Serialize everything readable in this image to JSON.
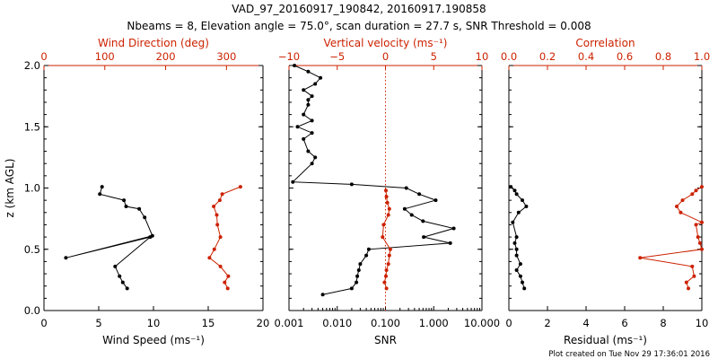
{
  "title_line1": "VAD_97_20160917_190842, 20160917.190858",
  "title_line2": "Nbeams = 8, Elevation angle = 75.0°, scan duration = 27.7 s, SNR Threshold = 0.008",
  "footer": "Plot created on Tue Nov 29 17:36:01 2016",
  "colors": {
    "primary": "#000000",
    "secondary": "#cc2200"
  },
  "chart_data": [
    {
      "type": "line",
      "ylabel": "z (km AGL)",
      "ylim": [
        0,
        2
      ],
      "ytick_labels": [
        "0.0",
        "0.5",
        "1.0",
        "1.5",
        "2.0"
      ],
      "bottom_axis": {
        "label": "Wind Speed (ms⁻¹)",
        "range": [
          0,
          20
        ],
        "tick_labels": [
          "0",
          "5",
          "10",
          "15",
          "20"
        ]
      },
      "top_axis": {
        "label": "Wind Direction (deg)",
        "range": [
          0,
          360
        ],
        "tick_labels": [
          "0",
          "100",
          "200",
          "300"
        ]
      },
      "series": [
        {
          "axis": "bottom",
          "color": "#000000",
          "x": [
            7.6,
            7.2,
            6.9,
            6.5,
            9.7,
            2.0,
            9.9,
            9.2,
            8.7,
            7.5,
            7.3,
            5.1,
            5.3
          ],
          "y": [
            0.18,
            0.23,
            0.28,
            0.36,
            0.6,
            0.43,
            0.61,
            0.76,
            0.83,
            0.85,
            0.9,
            0.95,
            1.01
          ]
        },
        {
          "axis": "top",
          "color": "#cc2200",
          "x": [
            302,
            297,
            303,
            290,
            272,
            280,
            290,
            285,
            284,
            279,
            289,
            293,
            323
          ],
          "y": [
            0.18,
            0.23,
            0.28,
            0.36,
            0.43,
            0.5,
            0.6,
            0.7,
            0.78,
            0.85,
            0.9,
            0.95,
            1.01
          ]
        }
      ]
    },
    {
      "type": "line",
      "bottom_axis": {
        "label": "SNR",
        "scale": "log",
        "range": [
          0.001,
          10
        ],
        "tick_labels": [
          "0.001",
          "0.010",
          "0.100",
          "1.000",
          "10.000"
        ]
      },
      "top_axis": {
        "label": "Vertical velocity (ms⁻¹)",
        "range": [
          -10,
          10
        ],
        "tick_labels": [
          "−10",
          "−5",
          "0",
          "5",
          "10"
        ]
      },
      "series": [
        {
          "axis": "bottom",
          "color": "#000000",
          "x": [
            0.005,
            0.02,
            0.025,
            0.026,
            0.028,
            0.03,
            0.04,
            0.045,
            2.2,
            0.62,
            2.6,
            0.6,
            0.35,
            0.25,
            1.1,
            0.5,
            0.27,
            0.02,
            0.0012,
            0.003,
            0.0035,
            0.0025,
            0.002,
            0.003,
            0.0015,
            0.003,
            0.002,
            0.0025,
            0.0025,
            0.003,
            0.002,
            0.0035,
            0.0045,
            0.0025,
            0.0013
          ],
          "y": [
            0.13,
            0.18,
            0.23,
            0.28,
            0.33,
            0.38,
            0.45,
            0.5,
            0.55,
            0.6,
            0.67,
            0.73,
            0.78,
            0.83,
            0.9,
            0.95,
            1.0,
            1.03,
            1.05,
            1.2,
            1.25,
            1.3,
            1.4,
            1.45,
            1.5,
            1.55,
            1.6,
            1.68,
            1.72,
            1.75,
            1.8,
            1.85,
            1.9,
            1.95,
            2.0
          ]
        },
        {
          "axis": "top",
          "color": "#cc2200",
          "x": [
            0.1,
            -0.1,
            0.05,
            0.1,
            0.3,
            0.4,
            0.5,
            -0.3,
            -0.2,
            0.3,
            0.4,
            0.2,
            0.1,
            0.05
          ],
          "y": [
            0.18,
            0.23,
            0.28,
            0.33,
            0.38,
            0.45,
            0.5,
            0.6,
            0.7,
            0.78,
            0.83,
            0.88,
            0.93,
            0.98
          ]
        }
      ],
      "reference_line": {
        "axis": "top",
        "x": 0,
        "style": "dotted",
        "color": "#cc2200"
      }
    },
    {
      "type": "line",
      "bottom_axis": {
        "label": "Residual (ms⁻¹)",
        "range": [
          0,
          10
        ],
        "tick_labels": [
          "0",
          "2",
          "4",
          "6",
          "8",
          "10"
        ]
      },
      "top_axis": {
        "label": "Correlation",
        "range": [
          0,
          1
        ],
        "tick_labels": [
          "0.0",
          "0.2",
          "0.4",
          "0.6",
          "0.8",
          "1.0"
        ]
      },
      "series": [
        {
          "axis": "bottom",
          "color": "#000000",
          "x": [
            0.8,
            0.7,
            0.6,
            0.4,
            0.6,
            0.4,
            0.4,
            0.3,
            0.4,
            0.2,
            0.5,
            0.9,
            0.7,
            0.4,
            0.3,
            0.1
          ],
          "y": [
            0.18,
            0.23,
            0.28,
            0.33,
            0.38,
            0.45,
            0.5,
            0.55,
            0.6,
            0.72,
            0.8,
            0.85,
            0.9,
            0.95,
            0.98,
            1.01
          ]
        },
        {
          "axis": "top",
          "color": "#cc2200",
          "x": [
            0.93,
            0.92,
            0.96,
            0.95,
            0.68,
            1.0,
            0.99,
            0.98,
            0.97,
            1.0,
            0.89,
            0.87,
            0.9,
            0.95,
            0.97,
            1.0
          ],
          "y": [
            0.18,
            0.23,
            0.28,
            0.36,
            0.43,
            0.5,
            0.55,
            0.6,
            0.7,
            0.72,
            0.8,
            0.85,
            0.9,
            0.95,
            0.98,
            1.01
          ]
        }
      ]
    }
  ]
}
